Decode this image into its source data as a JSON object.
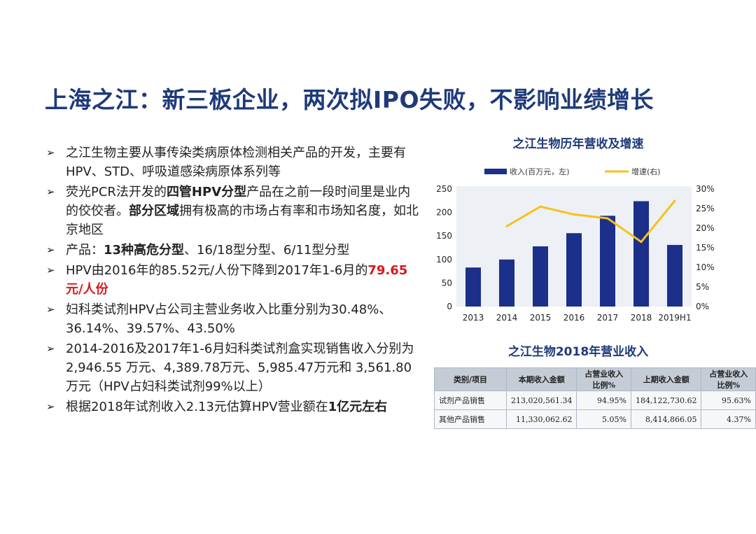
{
  "title": "上海之江：新三板企业，两次拟IPO失败，不影响业绩增长",
  "bullet_mark": "➢",
  "bullets": [
    {
      "parts": [
        {
          "t": "之江生物主要从事传染类病原体检测相关产品的开发，主要有HPV、STD、呼吸道感染病原体系列等",
          "s": ""
        }
      ]
    },
    {
      "parts": [
        {
          "t": "荧光PCR法开发的",
          "s": ""
        },
        {
          "t": "四管HPV分型",
          "s": "b"
        },
        {
          "t": "产品在之前一段时间里是业内的佼佼者。",
          "s": ""
        },
        {
          "t": "部分区域",
          "s": "b"
        },
        {
          "t": "拥有极高的市场占有率和市场知名度，如北京地区",
          "s": ""
        }
      ]
    },
    {
      "parts": [
        {
          "t": "产品：",
          "s": ""
        },
        {
          "t": "13种高危分型",
          "s": "b"
        },
        {
          "t": "、16/18型分型、6/11型分型",
          "s": ""
        }
      ]
    },
    {
      "parts": [
        {
          "t": "HPV由2016年的85.52元/人份下降到2017年1-6月的",
          "s": ""
        },
        {
          "t": "79.65 元/人份",
          "s": "red"
        }
      ]
    },
    {
      "parts": [
        {
          "t": "妇科类试剂HPV占公司主营业务收入比重分别为30.48%、36.14%、39.57%、43.50%",
          "s": ""
        }
      ]
    },
    {
      "parts": [
        {
          "t": "2014-2016及2017年1-6月妇科类试剂盒实现销售收入分别为 2,946.55 万元、4,389.78万元、5,985.47万元和 3,561.80 万元（HPV占妇科类试剂99%以上）",
          "s": ""
        }
      ]
    },
    {
      "parts": [
        {
          "t": "根据2018年试剂收入2.13元估算HPV营业额在",
          "s": ""
        },
        {
          "t": "1亿元左右",
          "s": "b"
        }
      ]
    }
  ],
  "chart_title": "之江生物历年营收及增速",
  "table_title": "之江生物2018年营业收入",
  "chart_data": {
    "type": "bar",
    "categories": [
      "2013",
      "2014",
      "2015",
      "2016",
      "2017",
      "2018",
      "2019H1"
    ],
    "series": [
      {
        "name": "收入(百万元，左)",
        "type": "bar",
        "axis": "left",
        "color": "#1c2f8a",
        "values": [
          83,
          100,
          128,
          156,
          193,
          224,
          131
        ]
      },
      {
        "name": "增速(右)",
        "type": "line",
        "axis": "right",
        "color": "#f6c219",
        "values": [
          null,
          20.5,
          25.5,
          23.5,
          22.5,
          16.5,
          27
        ]
      }
    ],
    "yticks_left": [
      "0",
      "50",
      "100",
      "150",
      "200",
      "250"
    ],
    "yticks_right": [
      "0%",
      "5%",
      "10%",
      "15%",
      "20%",
      "25%",
      "30%"
    ],
    "ylim_left": [
      0,
      250
    ],
    "ylim_right": [
      0,
      30
    ],
    "legend_position": "top",
    "grid": false,
    "background": "#edf1f5"
  },
  "table": {
    "headers": [
      "类别/项目",
      "本期收入金额",
      "占营业收入比例%",
      "上期收入金额",
      "占营业收入比例%"
    ],
    "rows": [
      [
        "试剂产品销售",
        "213,020,561.34",
        "94.95%",
        "184,122,730.62",
        "95.63%"
      ],
      [
        "其他产品销售",
        "11,330,062.62",
        "5.05%",
        "8,414,866.05",
        "4.37%"
      ]
    ]
  }
}
